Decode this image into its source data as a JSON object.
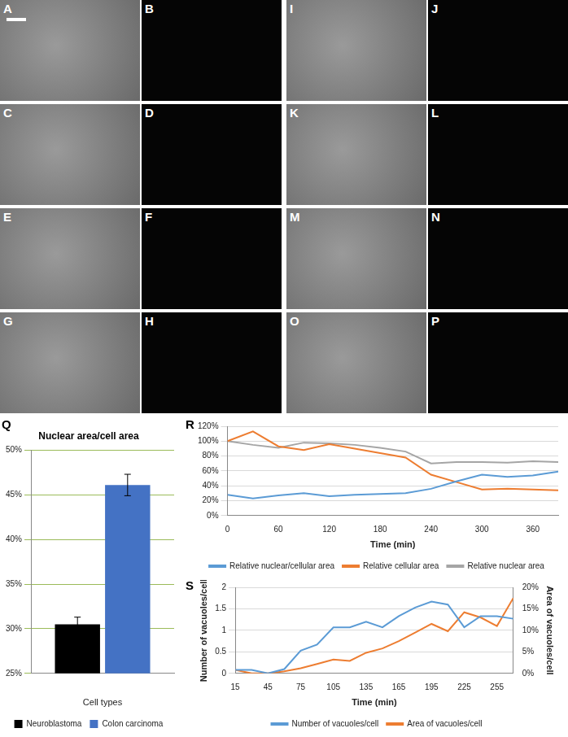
{
  "image_panels": {
    "labels": [
      [
        "A",
        "B",
        "I",
        "J"
      ],
      [
        "C",
        "D",
        "K",
        "L"
      ],
      [
        "E",
        "F",
        "M",
        "N"
      ],
      [
        "G",
        "H",
        "O",
        "P"
      ]
    ]
  },
  "chart_data": [
    {
      "panel": "Q",
      "type": "bar",
      "title": "Nuclear area/cell area",
      "x_label": "Cell types",
      "categories": [
        null
      ],
      "series": [
        {
          "name": "Neuroblastoma",
          "color": "#000000",
          "values": [
            30.5
          ],
          "errors": [
            0.8
          ]
        },
        {
          "name": "Colon carcinoma",
          "color": "#4472c4",
          "values": [
            46.1
          ],
          "errors": [
            1.2
          ]
        }
      ],
      "ylim": [
        25,
        50
      ],
      "yticks": [
        {
          "value": 25,
          "label": "25%"
        },
        {
          "value": 30,
          "label": "30%"
        },
        {
          "value": 35,
          "label": "35%"
        },
        {
          "value": 40,
          "label": "40%"
        },
        {
          "value": 45,
          "label": "45%"
        },
        {
          "value": 50,
          "label": "50%"
        }
      ],
      "grid": true,
      "legend": "bottom"
    },
    {
      "panel": "R",
      "type": "line",
      "x_label": "Time (min)",
      "x": [
        0,
        30,
        60,
        90,
        120,
        150,
        180,
        210,
        240,
        270,
        300,
        330,
        360,
        390
      ],
      "series": [
        {
          "name": "Relative nuclear/cellular area",
          "color": "#5b9bd5",
          "values": [
            28,
            23,
            27,
            30,
            26,
            28,
            29,
            30,
            36,
            46,
            55,
            52,
            54,
            59
          ]
        },
        {
          "name": "Relative cellular area",
          "color": "#ed7d31",
          "values": [
            100,
            113,
            93,
            88,
            96,
            90,
            84,
            78,
            55,
            45,
            35,
            36,
            35,
            34
          ]
        },
        {
          "name": "Relative nuclear area",
          "color": "#a5a5a5",
          "values": [
            100,
            95,
            91,
            98,
            97,
            95,
            91,
            86,
            70,
            72,
            72,
            71,
            73,
            72
          ]
        }
      ],
      "xlim": [
        0,
        390
      ],
      "xticks": [
        0,
        60,
        120,
        180,
        240,
        300,
        360
      ],
      "ylim": [
        0,
        120
      ],
      "yticks": [
        {
          "value": 0,
          "label": "0%"
        },
        {
          "value": 20,
          "label": "20%"
        },
        {
          "value": 40,
          "label": "40%"
        },
        {
          "value": 60,
          "label": "60%"
        },
        {
          "value": 80,
          "label": "80%"
        },
        {
          "value": 100,
          "label": "100%"
        },
        {
          "value": 120,
          "label": "120%"
        }
      ],
      "grid": true,
      "legend": "bottom"
    },
    {
      "panel": "S",
      "type": "line",
      "x_label": "Time (min)",
      "y_label": "Number of vacuoles/cell",
      "y2_label": "Area of vacuoles/cell",
      "x": [
        15,
        30,
        45,
        60,
        75,
        90,
        105,
        120,
        135,
        150,
        165,
        180,
        195,
        210,
        225,
        240,
        255,
        270
      ],
      "series": [
        {
          "name": "Number of vacuoles/cell",
          "color": "#5b9bd5",
          "values": [
            0.08,
            0.08,
            0,
            0.1,
            0.53,
            0.67,
            1.07,
            1.07,
            1.2,
            1.07,
            1.33,
            1.53,
            1.67,
            1.6,
            1.07,
            1.33,
            1.33,
            1.27
          ]
        },
        {
          "name": "Area of vacuoles/cell",
          "color": "#ed7d31",
          "axis": "y2",
          "values": [
            0.8,
            0,
            0,
            0.5,
            1.2,
            2.2,
            3.2,
            2.9,
            4.8,
            5.8,
            7.5,
            9.5,
            11.5,
            9.8,
            14.2,
            13,
            11,
            17.5
          ]
        }
      ],
      "xlim": [
        15,
        270
      ],
      "xticks": [
        15,
        45,
        75,
        105,
        135,
        165,
        195,
        225,
        255
      ],
      "ylim": [
        0,
        2
      ],
      "yticks": [
        0,
        0.5,
        1,
        1.5,
        2
      ],
      "y2lim": [
        0,
        20
      ],
      "y2ticks": [
        {
          "value": 0,
          "label": "0%"
        },
        {
          "value": 5,
          "label": "5%"
        },
        {
          "value": 10,
          "label": "10%"
        },
        {
          "value": 15,
          "label": "15%"
        },
        {
          "value": 20,
          "label": "20%"
        }
      ],
      "grid": true,
      "legend": "bottom"
    }
  ]
}
